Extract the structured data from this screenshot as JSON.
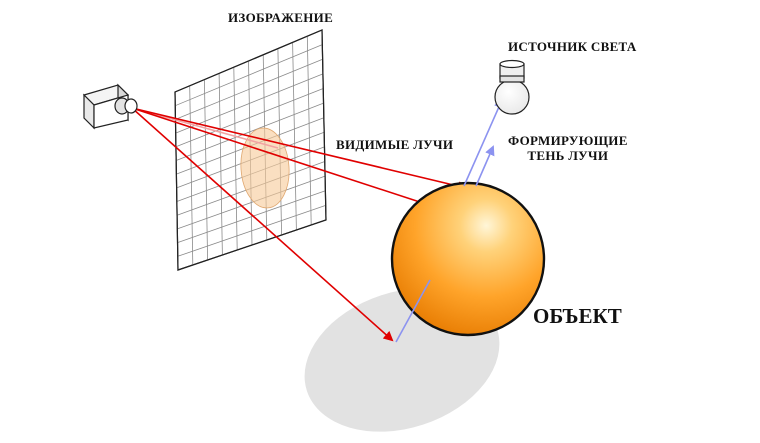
{
  "labels": {
    "image": "ИЗОБРАЖЕНИЕ",
    "light_source": "ИСТОЧНИК СВЕТА",
    "visible_rays": "ВИДИМЫЕ ЛУЧИ",
    "shadow_rays_line1": "ФОРМИРУЮЩИЕ",
    "shadow_rays_line2": "ТЕНЬ ЛУЧИ",
    "object": "ОБЪЕКТ"
  },
  "colors": {
    "visible_ray": "#e00000",
    "shadow_ray": "#8c93f0",
    "sphere_light": "#fff2c8",
    "sphere_mid": "#ffa42a",
    "sphere_dark": "#e07800",
    "ground_shadow": "#e2e2e2",
    "grid_line": "#8a8a8a"
  }
}
